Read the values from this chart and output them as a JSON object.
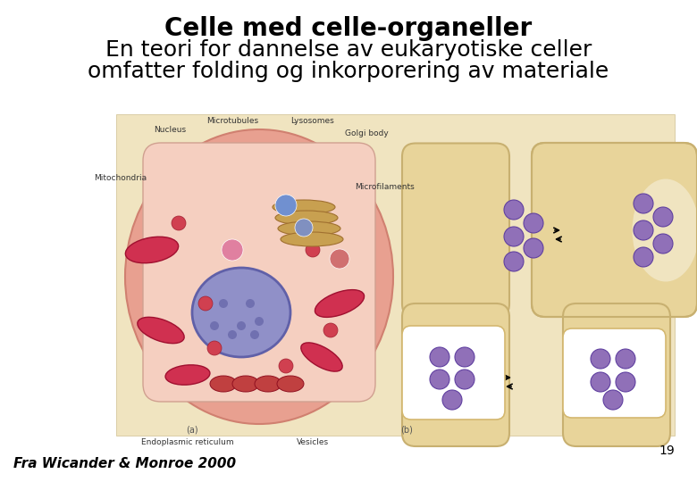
{
  "title_line1": "Celle med celle-organeller",
  "title_line2": "En teori for dannelse av eukaryotiske celler",
  "title_line3": "omfatter folding og inkorporering av materiale",
  "citation": "Fra Wicander & Monroe 2000",
  "page_number": "19",
  "bg_color": "#ffffff",
  "title_fontsize": 20,
  "subtitle_fontsize": 18,
  "citation_fontsize": 11,
  "page_fontsize": 10,
  "panel_bg": "#f0e4c0",
  "cell_color": "#e8d49a",
  "cell_edge": "#c8b070",
  "purple_dot": "#9070b8",
  "purple_dot_edge": "#6040a0",
  "white_membrane": "#ffffff",
  "membrane_edge": "#d4b870"
}
